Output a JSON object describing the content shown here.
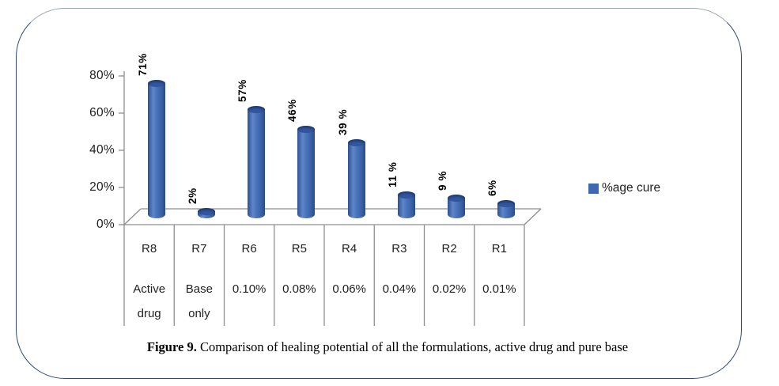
{
  "figure": {
    "caption_prefix": "Figure 9.",
    "caption_text": " Comparison of healing potential of all the formulations, active drug and pure base"
  },
  "legend": {
    "label": "%age cure",
    "marker_color": "#3e68b1"
  },
  "chart_data": {
    "type": "bar",
    "style": "3d-cylinder",
    "title": "",
    "legend_position": "right",
    "grid": false,
    "categories": [
      "R8",
      "R7",
      "R6",
      "R5",
      "R4",
      "R3",
      "R2",
      "R1"
    ],
    "sub_categories": [
      "Active drug",
      "Base only",
      "0.10%",
      "0.08%",
      "0.06%",
      "0.04%",
      "0.02%",
      "0.01%"
    ],
    "series": [
      {
        "name": "%age cure",
        "values": [
          71,
          2,
          57,
          46,
          39,
          11,
          9,
          6
        ],
        "data_labels": [
          "71%",
          "2%",
          "57%",
          "46%",
          "39 %",
          "11 %",
          "9 %",
          "6%"
        ],
        "color": "#3e68b1"
      }
    ],
    "xlabel": "",
    "ylabel": "",
    "y_ticks": [
      "0%",
      "20%",
      "40%",
      "60%",
      "80%"
    ],
    "ylim": [
      0,
      80
    ],
    "data_label_rotation": 90,
    "axis_line_color": "#8f8f8f",
    "bar_color": "#3e68b1"
  }
}
